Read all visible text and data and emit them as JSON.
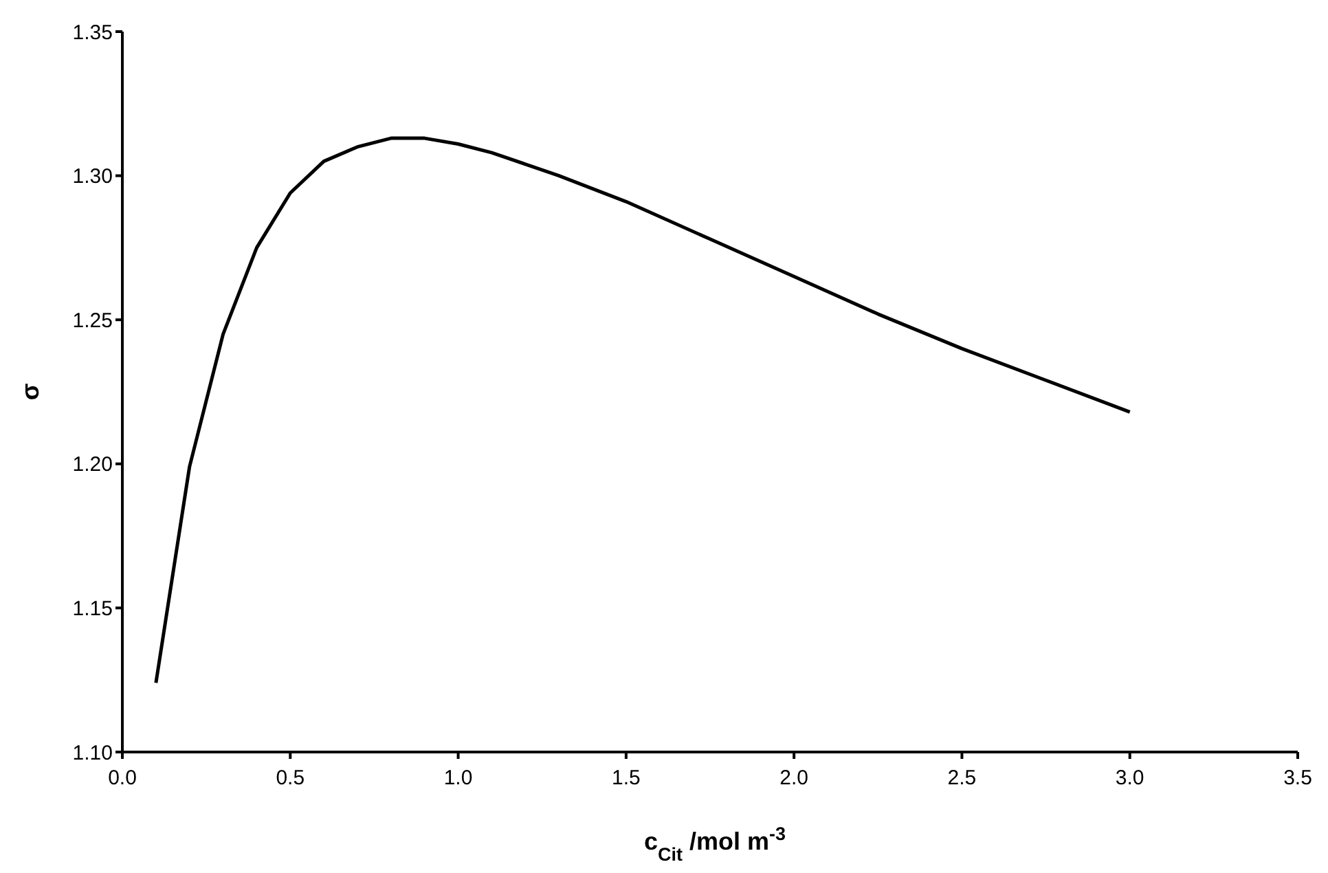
{
  "chart_data": {
    "type": "line",
    "xlabel": "c$_{Cit}$ /mol m$^{-3}$",
    "ylabel": "σ",
    "x": [
      0.1,
      0.2,
      0.3,
      0.4,
      0.5,
      0.6,
      0.7,
      0.8,
      0.9,
      1.0,
      1.1,
      1.2,
      1.3,
      1.5,
      1.75,
      2.0,
      2.25,
      2.5,
      2.75,
      3.0
    ],
    "series": [
      {
        "color": "#000000",
        "values": [
          1.124,
          1.199,
          1.245,
          1.275,
          1.294,
          1.305,
          1.31,
          1.313,
          1.313,
          1.311,
          1.308,
          1.304,
          1.3,
          1.291,
          1.278,
          1.265,
          1.252,
          1.24,
          1.229,
          1.218
        ]
      }
    ],
    "xlim": [
      0,
      3.5
    ],
    "xticks": [
      {
        "value": 0,
        "label": "0.0"
      },
      0.5,
      {
        "value": 1,
        "label": "1.0"
      },
      1.5,
      {
        "value": 2,
        "label": "2.0"
      },
      2.5,
      {
        "value": 3,
        "label": "3.0"
      },
      3.5
    ],
    "ylim": [
      1.1,
      1.35
    ],
    "yticks": [
      {
        "value": 1.1,
        "label": "1.10"
      },
      1.15,
      {
        "value": 1.2,
        "label": "1.20"
      },
      1.25,
      {
        "value": 1.3,
        "label": "1.30"
      },
      1.35
    ],
    "marker": "none",
    "line_style": "solid"
  }
}
